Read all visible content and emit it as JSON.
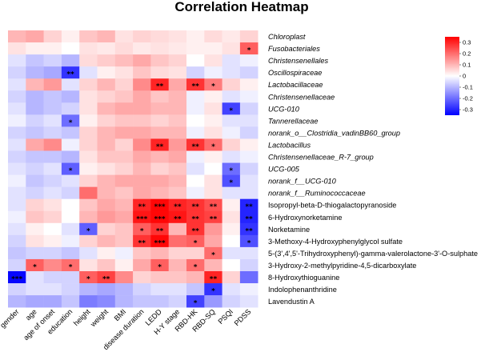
{
  "chart_data": {
    "type": "heatmap",
    "title": "Correlation Heatmap",
    "columns": [
      "gender",
      "age",
      "age of onset",
      "education",
      "height",
      "weight",
      "BMI",
      "disease duration",
      "LEDD",
      "H-Y stage",
      "RBD-HK",
      "RBD-SQ",
      "PSQI",
      "PDSS"
    ],
    "rows": [
      {
        "label": "Chloroplast",
        "italic": true,
        "values": [
          0.1,
          0.12,
          0.06,
          0.02,
          0.08,
          0.1,
          0.04,
          0.06,
          0.05,
          0.04,
          0.02,
          0.05,
          0.03,
          0.06
        ],
        "stars": [
          "",
          "",
          "",
          "",
          "",
          "",
          "",
          "",
          "",
          "",
          "",
          "",
          "",
          ""
        ]
      },
      {
        "label": "Fusobacteriales",
        "italic": true,
        "values": [
          0.04,
          0.02,
          0.02,
          0.0,
          0.04,
          0.03,
          0.05,
          0.03,
          0.04,
          0.03,
          0.02,
          0.02,
          0.04,
          0.22
        ],
        "stars": [
          "",
          "",
          "",
          "",
          "",
          "",
          "",
          "",
          "",
          "",
          "",
          "",
          "",
          "*"
        ]
      },
      {
        "label": "Christensenellales",
        "italic": true,
        "values": [
          -0.04,
          -0.08,
          -0.06,
          -0.1,
          0.05,
          0.07,
          0.09,
          0.12,
          0.08,
          0.06,
          0.0,
          0.04,
          -0.04,
          -0.02
        ],
        "stars": [
          "",
          "",
          "",
          "",
          "",
          "",
          "",
          "",
          "",
          "",
          "",
          "",
          "",
          ""
        ]
      },
      {
        "label": "Oscillospiraceae",
        "italic": true,
        "values": [
          -0.06,
          -0.1,
          -0.12,
          -0.28,
          -0.04,
          0.02,
          0.04,
          0.08,
          0.05,
          0.04,
          -0.06,
          -0.02,
          -0.04,
          -0.06
        ],
        "stars": [
          "",
          "",
          "",
          "**",
          "",
          "",
          "",
          "",
          "",
          "",
          "",
          "",
          "",
          ""
        ]
      },
      {
        "label": "Lactobacillaceae",
        "italic": true,
        "values": [
          -0.04,
          0.1,
          0.14,
          -0.04,
          0.06,
          0.1,
          0.06,
          0.16,
          0.3,
          0.12,
          0.28,
          0.18,
          0.06,
          0.02
        ],
        "stars": [
          "",
          "",
          "",
          "",
          "",
          "",
          "",
          "",
          "**",
          "",
          "**",
          "*",
          "",
          ""
        ]
      },
      {
        "label": "Christensenellaceae",
        "italic": true,
        "values": [
          -0.06,
          -0.1,
          -0.08,
          -0.1,
          0.04,
          0.06,
          0.08,
          0.12,
          0.08,
          0.1,
          -0.02,
          0.02,
          -0.04,
          -0.02
        ],
        "stars": [
          "",
          "",
          "",
          "",
          "",
          "",
          "",
          "",
          "",
          "",
          "",
          "",
          "",
          ""
        ]
      },
      {
        "label": "UCG-010",
        "italic": true,
        "values": [
          -0.04,
          -0.1,
          -0.08,
          -0.06,
          0.04,
          0.1,
          0.12,
          0.12,
          0.1,
          0.1,
          -0.02,
          0.04,
          -0.26,
          -0.06
        ],
        "stars": [
          "",
          "",
          "",
          "",
          "",
          "",
          "",
          "",
          "",
          "",
          "",
          "",
          "*",
          ""
        ]
      },
      {
        "label": "Tannerellaceae",
        "italic": true,
        "values": [
          -0.02,
          -0.06,
          -0.04,
          -0.2,
          0.02,
          0.06,
          0.08,
          0.08,
          0.06,
          0.08,
          0.0,
          0.02,
          -0.04,
          -0.04
        ],
        "stars": [
          "",
          "",
          "",
          "*",
          "",
          "",
          "",
          "",
          "",
          "",
          "",
          "",
          "",
          ""
        ]
      },
      {
        "label": "norank_o__Clostridia_vadinBB60_group",
        "italic": true,
        "values": [
          -0.06,
          -0.08,
          -0.06,
          -0.08,
          0.06,
          0.1,
          0.12,
          0.12,
          0.1,
          0.1,
          -0.02,
          0.04,
          -0.02,
          -0.06
        ],
        "stars": [
          "",
          "",
          "",
          "",
          "",
          "",
          "",
          "",
          "",
          "",
          "",
          "",
          "",
          ""
        ]
      },
      {
        "label": "Lactobacillus",
        "italic": true,
        "values": [
          -0.04,
          0.12,
          0.16,
          -0.02,
          0.06,
          0.1,
          0.06,
          0.16,
          0.3,
          0.14,
          0.28,
          0.2,
          0.06,
          0.02
        ],
        "stars": [
          "",
          "",
          "",
          "",
          "",
          "",
          "",
          "",
          "**",
          "",
          "**",
          "*",
          "",
          ""
        ]
      },
      {
        "label": "Christensenellaceae_R-7_group",
        "italic": true,
        "values": [
          -0.06,
          -0.08,
          -0.08,
          -0.1,
          0.04,
          0.08,
          0.08,
          0.12,
          0.1,
          0.12,
          -0.02,
          0.02,
          -0.04,
          -0.02
        ],
        "stars": [
          "",
          "",
          "",
          "",
          "",
          "",
          "",
          "",
          "",
          "",
          "",
          "",
          "",
          ""
        ]
      },
      {
        "label": "UCG-005",
        "italic": true,
        "values": [
          -0.04,
          -0.06,
          -0.04,
          -0.22,
          0.02,
          0.04,
          0.06,
          0.1,
          0.06,
          0.08,
          -0.04,
          0.0,
          -0.2,
          -0.06
        ],
        "stars": [
          "",
          "",
          "",
          "*",
          "",
          "",
          "",
          "",
          "",
          "",
          "",
          "",
          "*",
          ""
        ]
      },
      {
        "label": "norank_f__UCG-010",
        "italic": true,
        "values": [
          -0.02,
          -0.08,
          -0.06,
          -0.04,
          0.06,
          0.1,
          0.12,
          0.12,
          0.12,
          0.1,
          0.0,
          0.04,
          -0.24,
          -0.04
        ],
        "stars": [
          "",
          "",
          "",
          "",
          "",
          "",
          "",
          "",
          "",
          "",
          "",
          "",
          "*",
          ""
        ]
      },
      {
        "label": "norank_f__Ruminococcaceae",
        "italic": true,
        "values": [
          -0.04,
          -0.06,
          -0.04,
          -0.06,
          0.2,
          0.1,
          0.08,
          0.12,
          0.1,
          0.08,
          -0.02,
          0.04,
          -0.04,
          -0.04
        ],
        "stars": [
          "",
          "",
          "",
          "",
          "",
          "",
          "",
          "",
          "",
          "",
          "",
          "",
          "",
          ""
        ]
      },
      {
        "label": "Isopropyl-beta-D-thiogalactopyranoside",
        "italic": false,
        "values": [
          -0.04,
          0.06,
          0.04,
          0.0,
          0.08,
          0.12,
          0.1,
          0.3,
          0.34,
          0.3,
          0.28,
          0.24,
          0.02,
          -0.3
        ],
        "stars": [
          "",
          "",
          "",
          "",
          "",
          "",
          "",
          "**",
          "***",
          "**",
          "**",
          "**",
          "",
          "**"
        ]
      },
      {
        "label": "6-Hydroxynorketamine",
        "italic": false,
        "values": [
          -0.02,
          0.08,
          0.06,
          0.0,
          0.1,
          0.14,
          0.12,
          0.32,
          0.34,
          0.32,
          0.28,
          0.26,
          0.04,
          -0.3
        ],
        "stars": [
          "",
          "",
          "",
          "",
          "",
          "",
          "",
          "***",
          "***",
          "**",
          "**",
          "**",
          "",
          "**"
        ]
      },
      {
        "label": "Norketamine",
        "italic": false,
        "values": [
          -0.04,
          0.02,
          0.0,
          -0.04,
          -0.22,
          0.06,
          0.08,
          0.22,
          0.28,
          0.1,
          0.28,
          0.14,
          0.02,
          -0.28
        ],
        "stars": [
          "",
          "",
          "",
          "",
          "*",
          "",
          "",
          "*",
          "**",
          "",
          "**",
          "",
          "",
          "**"
        ]
      },
      {
        "label": "3-Methoxy-4-Hydroxyphenylglycol sulfate",
        "italic": false,
        "values": [
          -0.06,
          0.04,
          0.02,
          -0.02,
          0.06,
          0.1,
          0.08,
          0.28,
          0.34,
          0.2,
          0.22,
          0.12,
          0.0,
          -0.24
        ],
        "stars": [
          "",
          "",
          "",
          "",
          "",
          "",
          "",
          "**",
          "***",
          "",
          "*",
          "",
          "",
          "*"
        ]
      },
      {
        "label": "5-(3',4',5'-Trihydroxyphenyl)-gamma-valerolactone-3'-O-sulphate",
        "italic": false,
        "values": [
          -0.08,
          -0.06,
          -0.06,
          -0.08,
          -0.04,
          0.02,
          -0.02,
          0.08,
          0.1,
          0.06,
          0.06,
          0.2,
          -0.04,
          -0.04
        ],
        "stars": [
          "",
          "",
          "",
          "",
          "",
          "",
          "",
          "",
          "",
          "",
          "",
          "*",
          "",
          ""
        ]
      },
      {
        "label": "3-Hydroxy-2-methylpyridine-4,5-dicarboxylate",
        "italic": false,
        "values": [
          -0.06,
          0.22,
          0.16,
          0.2,
          0.04,
          0.08,
          0.02,
          0.12,
          0.22,
          0.1,
          0.2,
          0.1,
          0.0,
          -0.06
        ],
        "stars": [
          "",
          "*",
          "",
          "*",
          "",
          "",
          "",
          "",
          "*",
          "",
          "*",
          "",
          "",
          ""
        ]
      },
      {
        "label": "8-Hydroxythioguanine",
        "italic": false,
        "values": [
          -0.34,
          -0.04,
          -0.06,
          -0.06,
          0.22,
          0.26,
          0.16,
          0.06,
          0.08,
          0.08,
          0.1,
          0.3,
          0.06,
          -0.2
        ],
        "stars": [
          "***",
          "",
          "",
          "",
          "*",
          "**",
          "",
          "",
          "",
          "",
          "",
          "**",
          "",
          ""
        ]
      },
      {
        "label": "Indolophenanthridine",
        "italic": false,
        "values": [
          -0.06,
          -0.04,
          -0.04,
          -0.06,
          -0.1,
          -0.12,
          -0.1,
          -0.06,
          -0.04,
          -0.04,
          -0.08,
          -0.28,
          -0.04,
          -0.02
        ],
        "stars": [
          "",
          "",
          "",
          "",
          "",
          "",
          "",
          "",
          "",
          "",
          "",
          "*",
          "",
          ""
        ]
      },
      {
        "label": "Lavendustin A",
        "italic": false,
        "values": [
          -0.1,
          -0.12,
          -0.12,
          -0.08,
          -0.18,
          -0.16,
          -0.1,
          -0.08,
          -0.08,
          -0.06,
          -0.26,
          -0.14,
          -0.06,
          -0.04
        ],
        "stars": [
          "",
          "",
          "",
          "",
          "",
          "",
          "",
          "",
          "",
          "",
          "*",
          "",
          "",
          ""
        ]
      }
    ],
    "colorbar": {
      "min": -0.35,
      "max": 0.35,
      "ticks": [
        0.3,
        0.2,
        0.1,
        0,
        -0.1,
        -0.2,
        -0.3
      ],
      "tick_labels": [
        "0.3",
        "0.2",
        "0.1",
        "0",
        "-0.1",
        "-0.2",
        "-0.3"
      ],
      "low_color": "#0000ff",
      "mid_color": "#ffffff",
      "high_color": "#ff0000"
    }
  }
}
